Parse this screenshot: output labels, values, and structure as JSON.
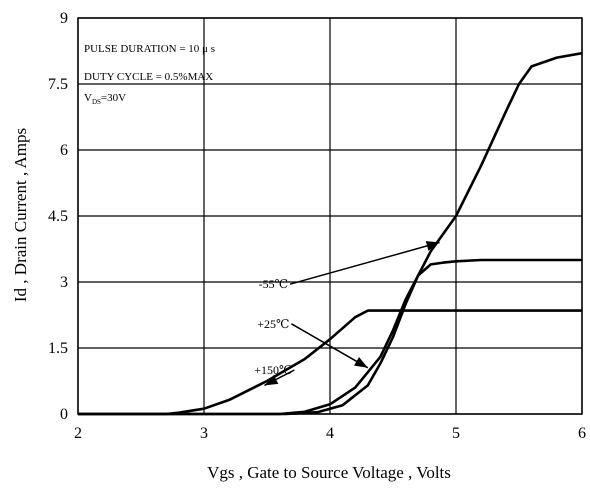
{
  "chart_data": {
    "type": "line",
    "xlabel": "Vgs , Gate to Source Voltage , Volts",
    "ylabel": "Id , Drain Current , Amps",
    "xlim": [
      2,
      6
    ],
    "ylim": [
      0,
      9
    ],
    "x_ticks": [
      "2",
      "3",
      "4",
      "5",
      "6"
    ],
    "y_ticks": [
      "0",
      "1.5",
      "3",
      "4.5",
      "6",
      "7.5",
      "9"
    ],
    "grid": true,
    "legend": "none",
    "annotation": {
      "line1": "PULSE   DURATION = 10 μ s",
      "line2": "DUTY   CYCLE = 0.5%MAX",
      "line3_main": "V",
      "line3_sub": "DS",
      "line3_rest": "=30V"
    },
    "series": [
      {
        "name": "-55℃",
        "label_at": [
          3.55,
          2.95
        ],
        "arrow_to": [
          4.87,
          3.9
        ],
        "points": [
          [
            2,
            0
          ],
          [
            3.6,
            0
          ],
          [
            3.8,
            0.05
          ],
          [
            4.0,
            0.22
          ],
          [
            4.2,
            0.6
          ],
          [
            4.4,
            1.3
          ],
          [
            4.5,
            1.9
          ],
          [
            4.6,
            2.6
          ],
          [
            4.7,
            3.15
          ],
          [
            4.8,
            3.4
          ],
          [
            4.9,
            3.44
          ],
          [
            5.0,
            3.47
          ],
          [
            5.2,
            3.5
          ],
          [
            5.5,
            3.5
          ],
          [
            6,
            3.5
          ]
        ]
      },
      {
        "name": "+25℃",
        "label_at": [
          3.55,
          2.05
        ],
        "arrow_to": [
          4.3,
          1.05
        ],
        "points": [
          [
            2,
            0
          ],
          [
            3.65,
            0
          ],
          [
            3.9,
            0.04
          ],
          [
            4.1,
            0.2
          ],
          [
            4.3,
            0.65
          ],
          [
            4.4,
            1.15
          ],
          [
            4.5,
            1.75
          ],
          [
            4.6,
            2.5
          ],
          [
            4.7,
            3.15
          ],
          [
            4.8,
            3.7
          ],
          [
            5.0,
            4.5
          ],
          [
            5.2,
            5.65
          ],
          [
            5.4,
            6.9
          ],
          [
            5.5,
            7.5
          ],
          [
            5.6,
            7.9
          ],
          [
            5.8,
            8.1
          ],
          [
            6,
            8.2
          ]
        ]
      },
      {
        "name": "+150℃",
        "label_at": [
          3.55,
          1.0
        ],
        "arrow_to": [
          3.48,
          0.65
        ],
        "points": [
          [
            2,
            0
          ],
          [
            2.7,
            0
          ],
          [
            2.8,
            0.03
          ],
          [
            3.0,
            0.12
          ],
          [
            3.2,
            0.32
          ],
          [
            3.5,
            0.75
          ],
          [
            3.8,
            1.25
          ],
          [
            4.0,
            1.7
          ],
          [
            4.2,
            2.2
          ],
          [
            4.3,
            2.35
          ],
          [
            4.5,
            2.35
          ],
          [
            6,
            2.35
          ]
        ]
      }
    ]
  }
}
